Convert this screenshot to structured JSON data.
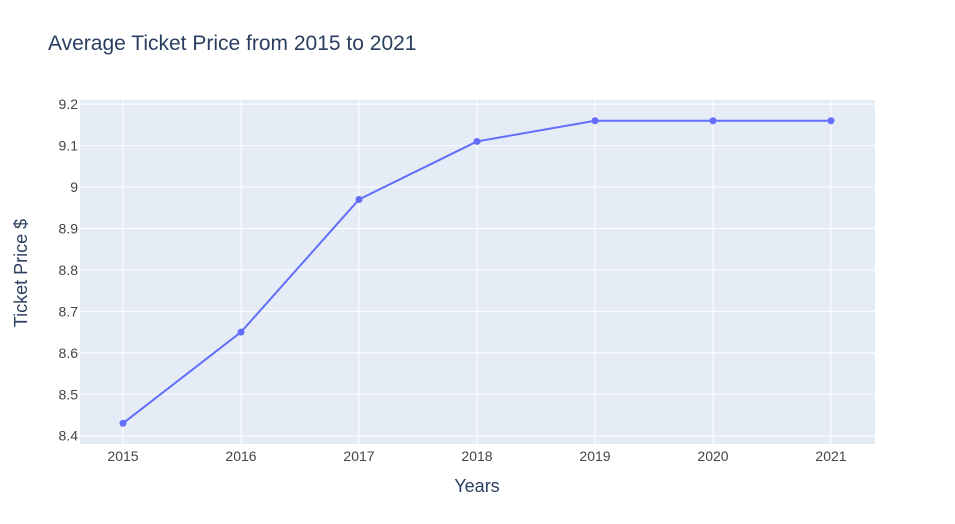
{
  "chart_data": {
    "type": "line",
    "title": "Average Ticket Price from 2015 to 2021",
    "xlabel": "Years",
    "ylabel": "Ticket Price $",
    "x": [
      "2015",
      "2016",
      "2017",
      "2018",
      "2019",
      "2020",
      "2021"
    ],
    "series": [
      {
        "values": [
          8.43,
          8.65,
          8.97,
          9.11,
          9.16,
          9.16,
          9.16
        ]
      }
    ],
    "yticks": [
      "8.4",
      "8.5",
      "8.6",
      "8.7",
      "8.8",
      "8.9",
      "9",
      "9.1",
      "9.2"
    ],
    "ylim": [
      8.38,
      9.21
    ],
    "grid": true,
    "colors": {
      "line": "#636efa",
      "plot_bg": "#e5ecf6",
      "grid": "#ffffff",
      "text": "#2a3f5f"
    }
  }
}
